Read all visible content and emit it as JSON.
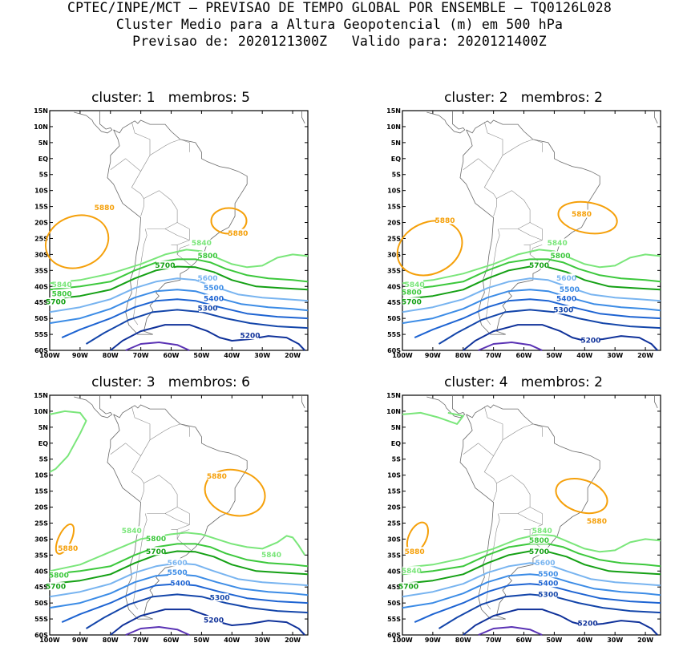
{
  "header": {
    "line1": "CPTEC/INPE/MCT – PREVISAO DE TEMPO GLOBAL POR ENSEMBLE – TQ0126L028",
    "line2": "Cluster Medio para a Altura Geopotencial (m) em 500 hPa",
    "line3": "Previsao de: 2020121300Z   Valido para: 2020121400Z"
  },
  "axes": {
    "lat_labels": [
      "15N",
      "10N",
      "5N",
      "EQ",
      "5S",
      "10S",
      "15S",
      "20S",
      "25S",
      "30S",
      "35S",
      "40S",
      "45S",
      "50S",
      "55S",
      "60S"
    ],
    "lon_labels": [
      "100W",
      "90W",
      "80W",
      "70W",
      "60W",
      "50W",
      "40W",
      "30W",
      "20W"
    ]
  },
  "colors": {
    "c5880": "#f5a00a",
    "c5840": "#7ae67a",
    "c5800": "#3cc83c",
    "c5700": "#14a014",
    "c5600": "#78b4f0",
    "c5500": "#3c8ce6",
    "c5400": "#1e64d2",
    "c5300": "#1446aa",
    "c5200": "#10329a",
    "c5100": "#5a32b4"
  },
  "chart_data": [
    {
      "type": "map",
      "title": "cluster: 1   membros: 5",
      "contour_labels": [
        "5880",
        "5880",
        "5840",
        "5800",
        "5700",
        "5600",
        "5500",
        "5400",
        "5300",
        "5200",
        "5840",
        "5800",
        "5700"
      ]
    },
    {
      "type": "map",
      "title": "cluster: 2   membros: 2",
      "contour_labels": [
        "5880",
        "5880",
        "5840",
        "5800",
        "5700",
        "5600",
        "5500",
        "5400",
        "5300",
        "5200",
        "5840",
        "5800",
        "5700"
      ]
    },
    {
      "type": "map",
      "title": "cluster: 3   membros: 6",
      "contour_labels": [
        "5880",
        "5880",
        "5840",
        "5840",
        "5800",
        "5700",
        "5600",
        "5500",
        "5400",
        "5300",
        "5200",
        "5800",
        "5700"
      ]
    },
    {
      "type": "map",
      "title": "cluster: 4   membros: 2",
      "contour_labels": [
        "5880",
        "5880",
        "5840",
        "5800",
        "5700",
        "5600",
        "5500",
        "5400",
        "5300",
        "5200",
        "5840",
        "5700"
      ]
    }
  ]
}
